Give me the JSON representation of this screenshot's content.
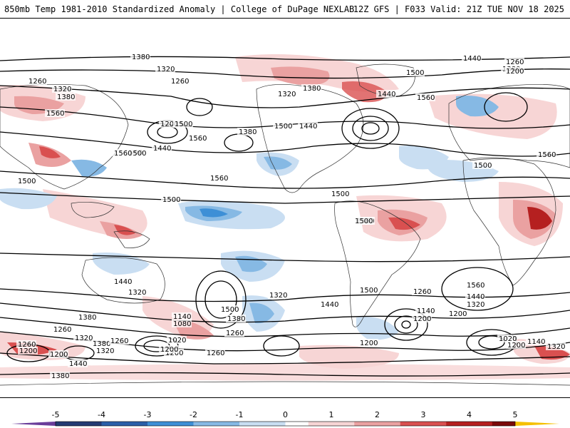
{
  "header": {
    "title_left": "850mb Temp 1981-2010 Standardized Anomaly | College of DuPage NEXLAB",
    "title_right": "12Z GFS | F033 Valid: 21Z TUE NOV 18 2025"
  },
  "map": {
    "contour_labels": [
      "1380",
      "1320",
      "1260",
      "1320",
      "1380",
      "1560",
      "1260",
      "1200",
      "1500",
      "1440",
      "1560",
      "1500",
      "1380",
      "1440",
      "1500",
      "1320",
      "1380",
      "1440",
      "1560",
      "1500",
      "1560",
      "1500",
      "1560",
      "1440",
      "1380",
      "1260",
      "1200",
      "1560",
      "1500",
      "1500",
      "1500",
      "1560",
      "1500",
      "1500",
      "1440",
      "1320",
      "1380",
      "1260",
      "1200",
      "1140",
      "1080",
      "1020",
      "1500",
      "1380",
      "1260",
      "1320",
      "1200",
      "1380",
      "1320",
      "1260",
      "1200",
      "1500",
      "1440",
      "1260",
      "1140",
      "1200",
      "1560",
      "1440",
      "1320",
      "1200",
      "1020",
      "1200",
      "1140",
      "1320",
      "1260",
      "1200",
      "1260",
      "1320",
      "1200",
      "1440",
      "1380"
    ]
  },
  "colorbar": {
    "ticks": [
      "-5",
      "-4",
      "-3",
      "-2",
      "-1",
      "0",
      "1",
      "2",
      "3",
      "4",
      "5"
    ],
    "colors": [
      "#6a3d9a",
      "#243a73",
      "#2b5fa8",
      "#3d8fd6",
      "#86b9e4",
      "#c9def2",
      "#ffffff",
      "#f7d5d5",
      "#eaa1a1",
      "#d95050",
      "#b52020",
      "#7a0a0a",
      "#f5c000"
    ]
  }
}
